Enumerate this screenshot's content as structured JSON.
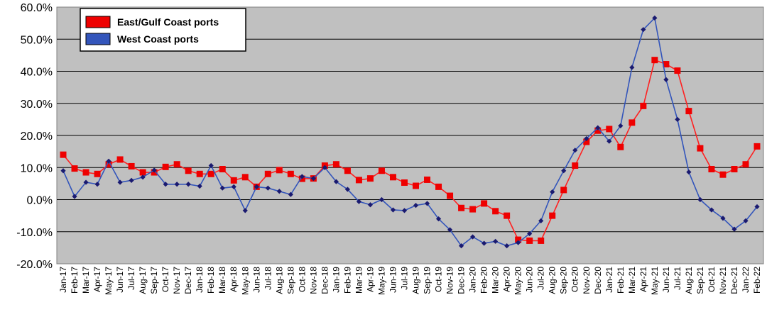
{
  "chart_data": {
    "type": "line",
    "categories": [
      "Jan-17",
      "Feb-17",
      "Mar-17",
      "Apr-17",
      "May-17",
      "Jun-17",
      "Jul-17",
      "Aug-17",
      "Sep-17",
      "Oct-17",
      "Nov-17",
      "Dec-17",
      "Jan-18",
      "Feb-18",
      "Mar-18",
      "Apr-18",
      "May-18",
      "Jun-18",
      "Jul-18",
      "Aug-18",
      "Sep-18",
      "Oct-18",
      "Nov-18",
      "Dec-18",
      "Jan-19",
      "Feb-19",
      "Mar-19",
      "Apr-19",
      "May-19",
      "Jun-19",
      "Jul-19",
      "Aug-19",
      "Sep-19",
      "Oct-19",
      "Nov-19",
      "Dec-19",
      "Jan-20",
      "Feb-20",
      "Mar-20",
      "Apr-20",
      "May-20",
      "Jun-20",
      "Jul-20",
      "Aug-20",
      "Sep-20",
      "Oct-20",
      "Nov-20",
      "Dec-20",
      "Jan-21",
      "Feb-21",
      "Mar-21",
      "Apr-21",
      "May-21",
      "Jun-21",
      "Jul-21",
      "Aug-21",
      "Sep-21",
      "Oct-21",
      "Nov-21",
      "Dec-21",
      "Jan-22",
      "Feb-22"
    ],
    "yticks": [
      "-20.0%",
      "-10.0%",
      "0.0%",
      "10.0%",
      "20.0%",
      "30.0%",
      "40.0%",
      "50.0%",
      "60.0%"
    ],
    "ylim": [
      -20,
      60
    ],
    "grid": true,
    "legend_position": "top-left",
    "series": [
      {
        "name": "East/Gulf Coast ports",
        "color": "#ff2020",
        "marker_color": "#ee0000",
        "marker": "square",
        "values": [
          14,
          9.7,
          8.5,
          8,
          11,
          12.5,
          10.4,
          8.5,
          8.5,
          10.2,
          11,
          9,
          8,
          8,
          9.5,
          6,
          7,
          4,
          8,
          9.2,
          8,
          6.5,
          6.6,
          10.6,
          11,
          9,
          6.1,
          6.6,
          9,
          7,
          5.3,
          4.3,
          6.2,
          4,
          1.2,
          -2.6,
          -3,
          -1.2,
          -3.6,
          -5,
          -12.5,
          -12.8,
          -12.8,
          -5,
          3,
          10.6,
          18,
          21.5,
          22,
          16.4,
          24,
          29.2,
          43.5,
          42.2,
          40.2,
          27.6,
          16,
          9.5,
          7.8,
          9.5,
          11,
          16.6
        ]
      },
      {
        "name": "West Coast ports",
        "color": "#3355bb",
        "marker_color": "#1a1a70",
        "marker": "diamond",
        "values": [
          9,
          1,
          5.4,
          4.8,
          12,
          5.4,
          6,
          7,
          9.2,
          4.8,
          4.8,
          4.8,
          4.2,
          10.6,
          3.6,
          4,
          -3.4,
          4,
          3.6,
          2.6,
          1.6,
          7.2,
          6.6,
          10,
          5.6,
          3.2,
          -0.6,
          -1.6,
          0,
          -3.2,
          -3.4,
          -1.8,
          -1.2,
          -6,
          -9.4,
          -14.4,
          -11.6,
          -13.6,
          -13,
          -14.4,
          -13.4,
          -10.6,
          -6.6,
          2.4,
          9,
          15.4,
          19,
          22.4,
          18.2,
          23,
          41.2,
          53,
          56.6,
          37.4,
          25,
          8.6,
          0,
          -3.2,
          -5.8,
          -9.2,
          -6.6,
          -2.2
        ]
      }
    ]
  }
}
